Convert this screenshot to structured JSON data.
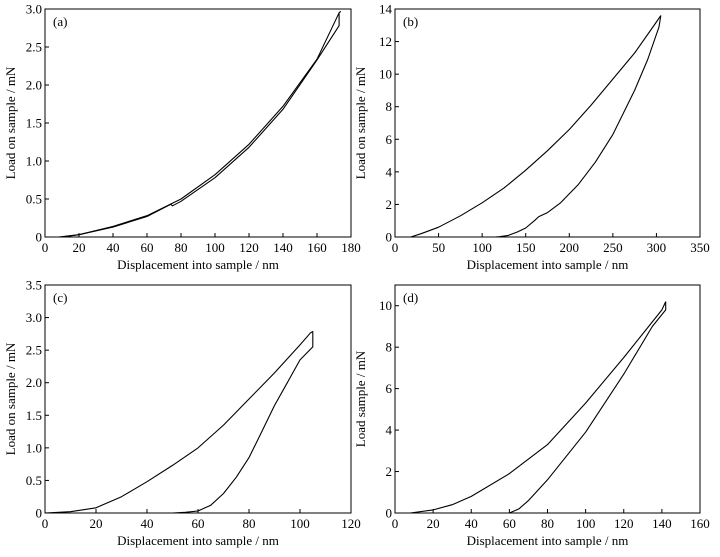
{
  "chart_data": [
    {
      "type": "line",
      "panel_label": "(a)",
      "xlabel": "Displacement into sample / nm",
      "ylabel": "Load on sample / mN",
      "xlim": [
        0,
        180
      ],
      "ylim": [
        0,
        3.0
      ],
      "xticks": [
        "0",
        "20",
        "40",
        "60",
        "80",
        "100",
        "120",
        "140",
        "160",
        "180"
      ],
      "yticks": [
        "0",
        "0.5",
        "1.0",
        "1.5",
        "2.0",
        "2.5",
        "3.0"
      ],
      "series": [
        {
          "x": [
            8,
            20,
            40,
            60,
            80,
            100,
            120,
            140,
            160,
            173,
            174
          ],
          "y": [
            0,
            0.03,
            0.14,
            0.28,
            0.5,
            0.82,
            1.22,
            1.72,
            2.34,
            2.95,
            2.97
          ]
        },
        {
          "x": [
            173,
            173,
            160,
            140,
            120,
            100,
            80,
            75,
            74,
            60,
            40,
            20,
            10
          ],
          "y": [
            2.95,
            2.78,
            2.33,
            1.68,
            1.18,
            0.78,
            0.47,
            0.41,
            0.43,
            0.27,
            0.13,
            0.03,
            0
          ]
        }
      ]
    },
    {
      "type": "line",
      "panel_label": "(b)",
      "xlabel": "Displacement into sample / nm",
      "ylabel": "Load on sample / mN",
      "xlim": [
        0,
        350
      ],
      "ylim": [
        0,
        14
      ],
      "xticks": [
        "0",
        "50",
        "100",
        "150",
        "200",
        "250",
        "300",
        "350"
      ],
      "yticks": [
        "0",
        "2",
        "4",
        "6",
        "8",
        "10",
        "12",
        "14"
      ],
      "series": [
        {
          "x": [
            18,
            30,
            50,
            75,
            100,
            125,
            150,
            175,
            200,
            225,
            250,
            275,
            300,
            305
          ],
          "y": [
            0,
            0.2,
            0.6,
            1.3,
            2.1,
            3.0,
            4.1,
            5.3,
            6.6,
            8.1,
            9.7,
            11.3,
            13.2,
            13.6
          ]
        },
        {
          "x": [
            305,
            303,
            290,
            275,
            250,
            230,
            210,
            190,
            175,
            165,
            160,
            150,
            140,
            130,
            120,
            115
          ],
          "y": [
            13.6,
            12.9,
            10.9,
            9.0,
            6.3,
            4.6,
            3.2,
            2.1,
            1.5,
            1.25,
            1.0,
            0.55,
            0.3,
            0.1,
            0.02,
            0
          ]
        }
      ]
    },
    {
      "type": "line",
      "panel_label": "(c)",
      "xlabel": "Displacement into sample / nm",
      "ylabel": "Load on sample / mN",
      "xlim": [
        0,
        120
      ],
      "ylim": [
        0,
        3.5
      ],
      "xticks": [
        "0",
        "20",
        "40",
        "60",
        "80",
        "100",
        "120"
      ],
      "yticks": [
        "0",
        "0.5",
        "1.0",
        "1.5",
        "2.0",
        "2.5",
        "3.0",
        "3.5"
      ],
      "series": [
        {
          "x": [
            0,
            10,
            20,
            30,
            40,
            50,
            60,
            70,
            80,
            90,
            100,
            104,
            105
          ],
          "y": [
            0,
            0.02,
            0.08,
            0.25,
            0.48,
            0.73,
            1.0,
            1.35,
            1.75,
            2.15,
            2.58,
            2.76,
            2.79
          ]
        },
        {
          "x": [
            105,
            105,
            100,
            95,
            90,
            85,
            80,
            75,
            70,
            65,
            60,
            55,
            50
          ],
          "y": [
            2.79,
            2.55,
            2.35,
            2.0,
            1.65,
            1.25,
            0.85,
            0.55,
            0.3,
            0.12,
            0.03,
            0.01,
            0
          ]
        }
      ]
    },
    {
      "type": "line",
      "panel_label": "(d)",
      "xlabel": "Displacement into sample / nm",
      "ylabel": "Load sample / mN",
      "xlim": [
        0,
        160
      ],
      "ylim": [
        0,
        11
      ],
      "xticks": [
        "0",
        "20",
        "40",
        "60",
        "80",
        "100",
        "120",
        "140",
        "160"
      ],
      "yticks": [
        "0",
        "2",
        "4",
        "6",
        "8",
        "10"
      ],
      "series": [
        {
          "x": [
            8,
            20,
            30,
            40,
            60,
            80,
            100,
            120,
            140,
            142
          ],
          "y": [
            0,
            0.15,
            0.4,
            0.8,
            1.9,
            3.3,
            5.3,
            7.5,
            9.8,
            10.2
          ]
        },
        {
          "x": [
            142,
            142,
            135,
            120,
            100,
            80,
            70,
            65,
            60
          ],
          "y": [
            10.2,
            9.8,
            9.0,
            6.7,
            3.9,
            1.6,
            0.6,
            0.2,
            0
          ]
        }
      ]
    }
  ]
}
